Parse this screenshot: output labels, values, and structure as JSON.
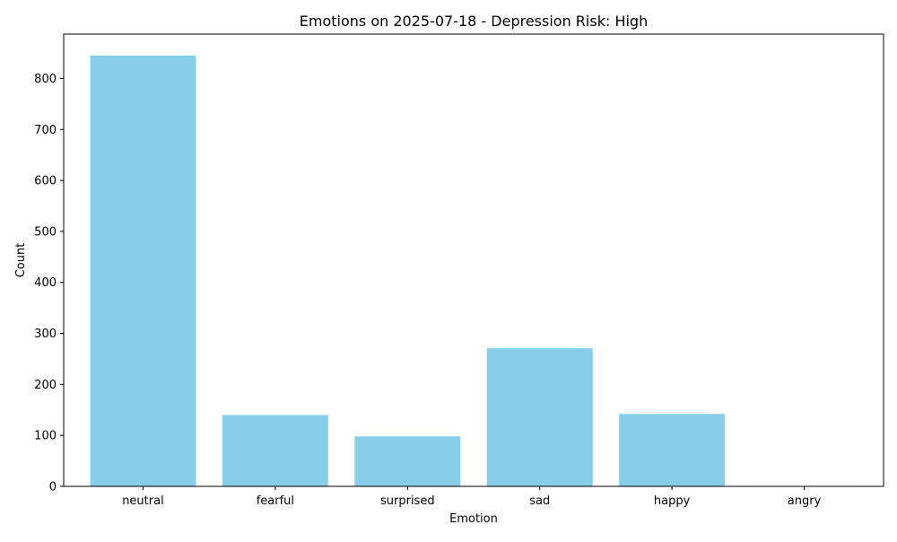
{
  "chart_data": {
    "type": "bar",
    "title": "Emotions on 2025-07-18 - Depression Risk: High",
    "xlabel": "Emotion",
    "ylabel": "Count",
    "categories": [
      "neutral",
      "fearful",
      "surprised",
      "sad",
      "happy",
      "angry"
    ],
    "values": [
      845,
      140,
      98,
      271,
      142,
      1
    ],
    "ylim": [
      0,
      887
    ],
    "yticks": [
      0,
      100,
      200,
      300,
      400,
      500,
      600,
      700,
      800
    ],
    "grid": false,
    "legend": "none",
    "bar_color": "#87ceeb"
  }
}
